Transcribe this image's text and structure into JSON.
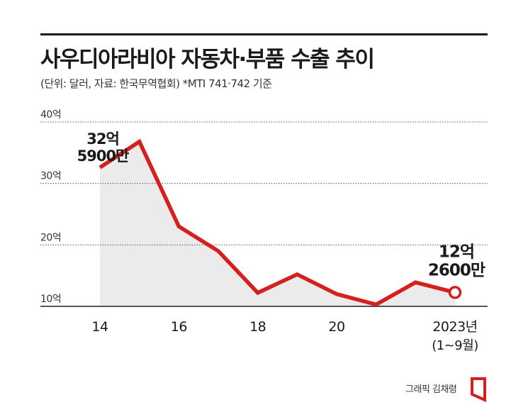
{
  "title": "사우디아라비아 자동차·부품 수출 추이",
  "subtitle": "(단위: 달러, 자료: 한국무역협회) *MTI 741·742 기준",
  "credit": "그래픽 김채령",
  "colors": {
    "line": "#d62020",
    "area": "#ebebeb",
    "text": "#1a1a1a",
    "grid": "#555555"
  },
  "chart_data": {
    "type": "area",
    "x": [
      2014,
      2015,
      2016,
      2017,
      2018,
      2019,
      2020,
      2021,
      2022,
      2023
    ],
    "values": [
      32.59,
      36.8,
      23.0,
      19.0,
      12.2,
      15.2,
      12.0,
      10.3,
      13.9,
      12.26
    ],
    "y_unit": "억",
    "ylim": [
      7,
      40
    ],
    "y_ticks": [
      10,
      20,
      30,
      40
    ],
    "y_tick_labels": [
      "10억",
      "20억",
      "30억",
      "40억"
    ],
    "x_ticks": [
      2014,
      2016,
      2018,
      2020,
      2023
    ],
    "x_tick_labels": [
      "14",
      "16",
      "18",
      "20",
      "2023년"
    ],
    "x_tick_sublabel": "(1~9월)",
    "grid": true,
    "annotations": [
      {
        "x": 2014,
        "line1": "32억",
        "line2": "5900만"
      },
      {
        "x": 2023,
        "line1": "12억",
        "line2": "2600만"
      }
    ]
  }
}
